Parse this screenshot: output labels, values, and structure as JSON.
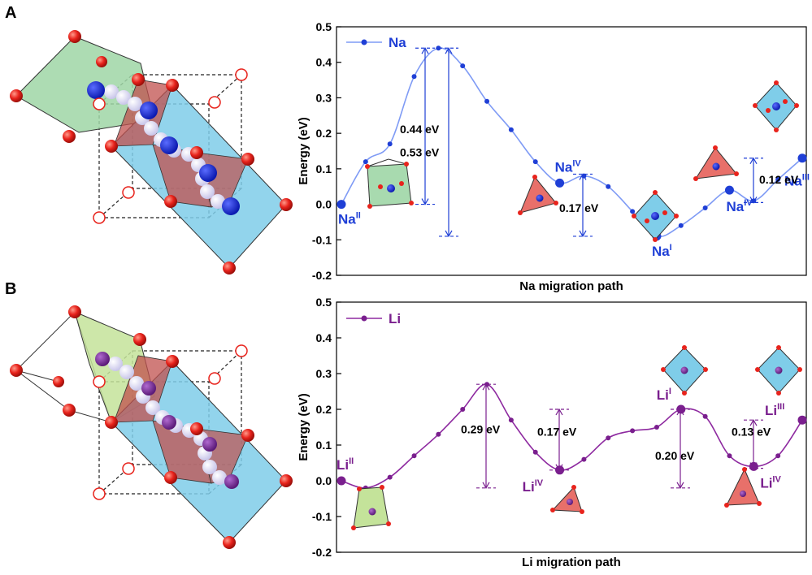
{
  "panels": [
    {
      "letter": "A",
      "chart_data": {
        "type": "line",
        "ion": "Na",
        "legend": "Na",
        "color": "#1f3fd6",
        "line_color": "#7f9bf5",
        "ylabel": "Energy (eV)",
        "xlabel": "Na migration path",
        "ylim": [
          -0.2,
          0.5
        ],
        "yticks": [
          "-0.2",
          "-0.1",
          "0.0",
          "0.1",
          "0.2",
          "0.3",
          "0.4",
          "0.5"
        ],
        "points": [
          {
            "x": 0,
            "y": 0.0
          },
          {
            "x": 1,
            "y": 0.12
          },
          {
            "x": 2,
            "y": 0.17
          },
          {
            "x": 3,
            "y": 0.36
          },
          {
            "x": 4,
            "y": 0.44
          },
          {
            "x": 5,
            "y": 0.39
          },
          {
            "x": 6,
            "y": 0.29
          },
          {
            "x": 7,
            "y": 0.21
          },
          {
            "x": 8,
            "y": 0.12
          },
          {
            "x": 9,
            "y": 0.06
          },
          {
            "x": 10,
            "y": 0.08
          },
          {
            "x": 11,
            "y": 0.05
          },
          {
            "x": 12,
            "y": -0.02
          },
          {
            "x": 13,
            "y": -0.09
          },
          {
            "x": 14,
            "y": -0.06
          },
          {
            "x": 15,
            "y": -0.01
          },
          {
            "x": 16,
            "y": 0.04
          },
          {
            "x": 17,
            "y": 0.01
          },
          {
            "x": 18,
            "y": 0.07
          },
          {
            "x": 19,
            "y": 0.13
          }
        ],
        "sites": [
          {
            "base": "Na",
            "sup": "II",
            "at": 0
          },
          {
            "base": "Na",
            "sup": "IV",
            "at": 9
          },
          {
            "base": "Na",
            "sup": "I",
            "at": 13
          },
          {
            "base": "Na",
            "sup": "IV",
            "at": 16
          },
          {
            "base": "Na",
            "sup": "III",
            "at": 19
          }
        ],
        "barriers": [
          "0.44 eV",
          "0.53 eV",
          "0.17 eV",
          "0.12 eV"
        ]
      }
    },
    {
      "letter": "B",
      "chart_data": {
        "type": "line",
        "ion": "Li",
        "legend": "Li",
        "color": "#7a1f8e",
        "line_color": "#8e2aa0",
        "ylabel": "Energy (eV)",
        "xlabel": "Li migration path",
        "ylim": [
          -0.2,
          0.5
        ],
        "yticks": [
          "-0.2",
          "-0.1",
          "0.0",
          "0.1",
          "0.2",
          "0.3",
          "0.4",
          "0.5"
        ],
        "points": [
          {
            "x": 0,
            "y": 0.0
          },
          {
            "x": 1,
            "y": -0.02
          },
          {
            "x": 2,
            "y": 0.01
          },
          {
            "x": 3,
            "y": 0.07
          },
          {
            "x": 4,
            "y": 0.13
          },
          {
            "x": 5,
            "y": 0.2
          },
          {
            "x": 6,
            "y": 0.27
          },
          {
            "x": 7,
            "y": 0.17
          },
          {
            "x": 8,
            "y": 0.08
          },
          {
            "x": 9,
            "y": 0.03
          },
          {
            "x": 10,
            "y": 0.06
          },
          {
            "x": 11,
            "y": 0.12
          },
          {
            "x": 12,
            "y": 0.14
          },
          {
            "x": 13,
            "y": 0.15
          },
          {
            "x": 14,
            "y": 0.2
          },
          {
            "x": 15,
            "y": 0.18
          },
          {
            "x": 16,
            "y": 0.07
          },
          {
            "x": 17,
            "y": 0.04
          },
          {
            "x": 18,
            "y": 0.07
          },
          {
            "x": 19,
            "y": 0.17
          }
        ],
        "sites": [
          {
            "base": "Li",
            "sup": "II",
            "at": 0
          },
          {
            "base": "Li",
            "sup": "IV",
            "at": 9
          },
          {
            "base": "Li",
            "sup": "I",
            "at": 14
          },
          {
            "base": "Li",
            "sup": "IV",
            "at": 17
          },
          {
            "base": "Li",
            "sup": "III",
            "at": 19
          }
        ],
        "barriers": [
          "0.29 eV",
          "0.17 eV",
          "0.20 eV",
          "0.13 eV"
        ]
      }
    }
  ],
  "colors": {
    "green_polyhedron": "#9fd6a6",
    "red_polyhedron": "#e8706a",
    "blue_polyhedron": "#7fcde9",
    "oxygen": "#e8231c",
    "migration_sphere": "#e7e6f7"
  }
}
